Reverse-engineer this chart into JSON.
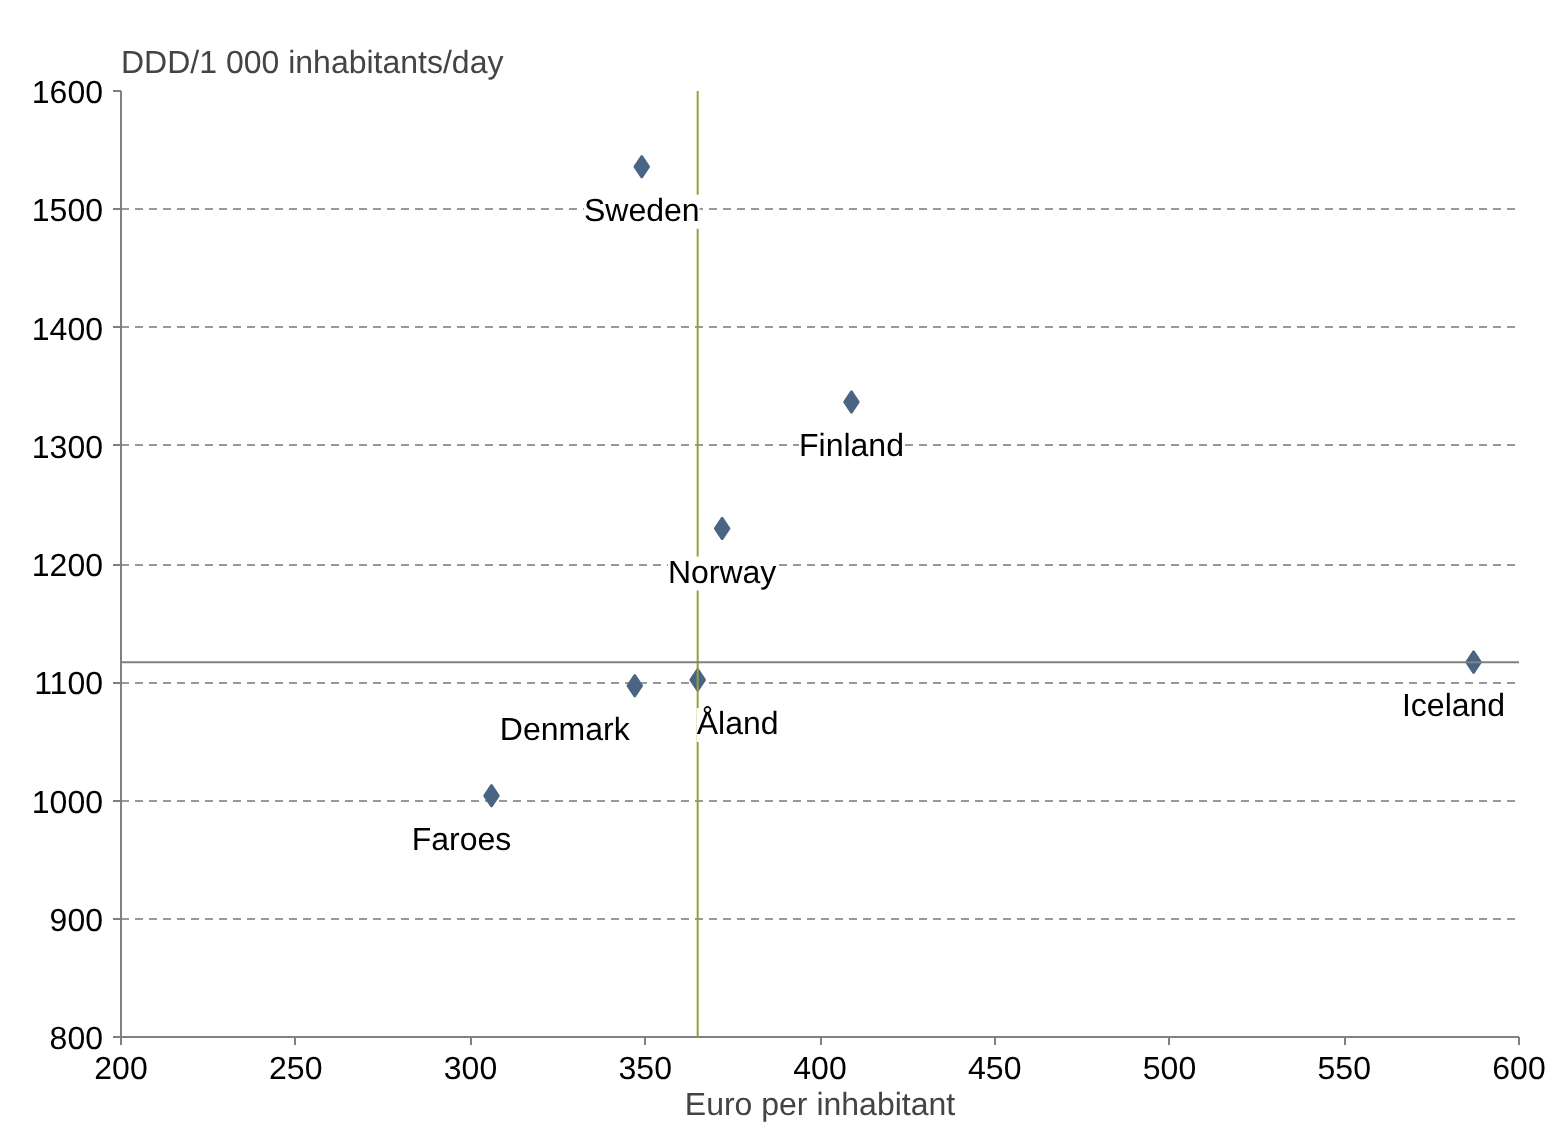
{
  "chart_data": {
    "type": "scatter",
    "ylabel": "DDD/1 000 inhabitants/day",
    "xlabel": "Euro per inhabitant",
    "x": [
      349,
      409,
      372,
      365,
      347,
      306,
      587
    ],
    "series": [
      {
        "color": "#4a6584",
        "values": [
          1536,
          1337,
          1230,
          1102,
          1097,
          1004,
          1117
        ]
      }
    ],
    "annotations": [
      {
        "text": "Sweden",
        "x": 349,
        "y": 1536
      },
      {
        "text": "Finland",
        "x": 409,
        "y": 1337
      },
      {
        "text": "Norway",
        "x": 372,
        "y": 1230
      },
      {
        "text": "Åland",
        "x": 365,
        "y": 1102
      },
      {
        "text": "Denmark",
        "x": 347,
        "y": 1097
      },
      {
        "text": "Faroes",
        "x": 306,
        "y": 1004
      },
      {
        "text": "Iceland",
        "x": 587,
        "y": 1117
      }
    ],
    "ref_lines": [
      {
        "axis": "x",
        "value": 365,
        "color": "#8fa33a"
      },
      {
        "axis": "y",
        "value": 1117,
        "color": "#808080"
      }
    ],
    "xlim": [
      200,
      600
    ],
    "xticks": [
      200,
      250,
      300,
      350,
      400,
      450,
      500,
      550,
      600
    ],
    "ylim": [
      800,
      1600
    ],
    "yticks": [
      800,
      900,
      1000,
      1100,
      1200,
      1300,
      1400,
      1500,
      1600
    ],
    "grid": "y",
    "marker": "diamond"
  }
}
